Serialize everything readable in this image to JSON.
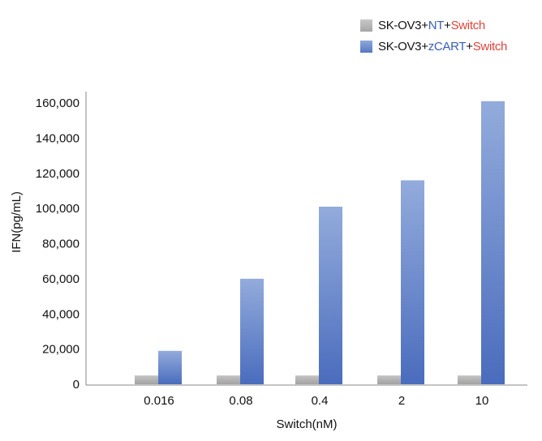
{
  "legend": {
    "items": [
      {
        "segments": [
          {
            "text": "SK-OV3+",
            "style": "base"
          },
          {
            "text": "NT",
            "style": "nt"
          },
          {
            "text": "+",
            "style": "base"
          },
          {
            "text": "Switch",
            "style": "switch"
          }
        ]
      },
      {
        "segments": [
          {
            "text": "SK-OV3+",
            "style": "base"
          },
          {
            "text": "zCART",
            "style": "zcart"
          },
          {
            "text": "+",
            "style": "base"
          },
          {
            "text": "Switch",
            "style": "switch"
          }
        ]
      }
    ]
  },
  "chart_data": {
    "type": "bar",
    "title": "",
    "xlabel": "Switch(nM)",
    "ylabel": "IFN(pg/mL)",
    "categories": [
      "0.016",
      "0.08",
      "0.4",
      "2",
      "10"
    ],
    "ylim": [
      0,
      160000
    ],
    "yticks": [
      0,
      20000,
      40000,
      60000,
      80000,
      100000,
      120000,
      140000,
      160000
    ],
    "ytick_labels": [
      "0",
      "20,000",
      "40,000",
      "60,000",
      "80,000",
      "100,000",
      "120,000",
      "140,000",
      "160,000"
    ],
    "series": [
      {
        "name": "SK-OV3+NT+Switch",
        "color": "#a9a9a9",
        "values": [
          5000,
          5000,
          5000,
          5000,
          5000
        ]
      },
      {
        "name": "SK-OV3+zCART+Switch",
        "color": "#5a78c2",
        "values": [
          19000,
          60000,
          101000,
          116000,
          161000
        ]
      }
    ]
  }
}
